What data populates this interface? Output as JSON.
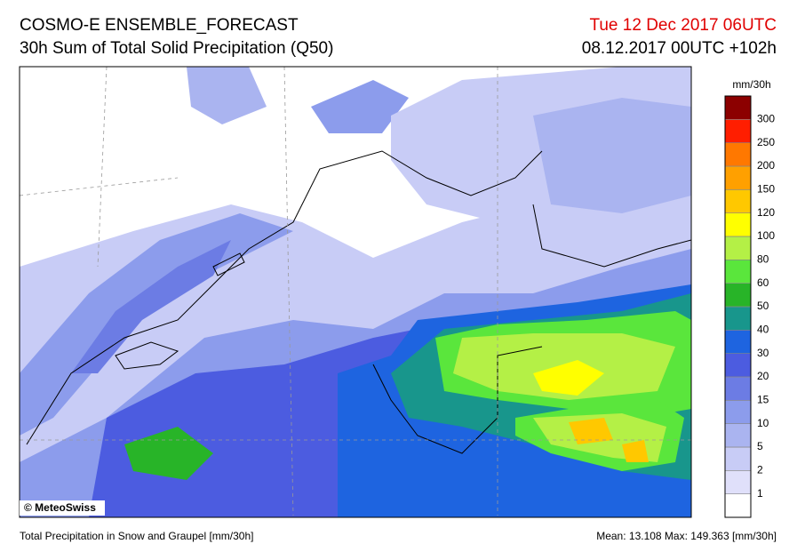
{
  "header": {
    "title": "COSMO-E ENSEMBLE_FORECAST",
    "subtitle": "30h Sum of Total Solid Precipitation (Q50)",
    "valid_time": "Tue 12 Dec 2017 06UTC",
    "run_time": "08.12.2017 00UTC +102h"
  },
  "map": {
    "copyright": "© MeteoSwiss"
  },
  "legend": {
    "unit": "mm/30h",
    "levels": [
      1,
      2,
      5,
      10,
      15,
      20,
      30,
      40,
      50,
      60,
      80,
      100,
      120,
      150,
      200,
      250,
      300
    ],
    "colors": [
      "#ffffff",
      "#e0e0fa",
      "#c8ccf6",
      "#aab4f0",
      "#8c9cec",
      "#6c7ce4",
      "#4c5ce0",
      "#1e64e0",
      "#18968c",
      "#28b428",
      "#5ae63c",
      "#b4f046",
      "#ffff00",
      "#ffc800",
      "#ffa000",
      "#ff7800",
      "#ff1e00",
      "#8c0000"
    ]
  },
  "footer": {
    "left": "Total Precipitation in Snow and Graupel [mm/30h]",
    "right": "Mean:  13.108 Max: 149.363 [mm/30h]"
  }
}
